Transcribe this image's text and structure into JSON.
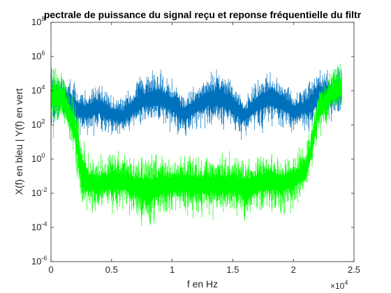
{
  "chart_data": {
    "type": "line",
    "title": "pectrale de puissance du signal reçu et reponse fréquentielle du filtr",
    "xlabel": "f en Hz",
    "ylabel": "X(f) en bleu | Y(f) en vert",
    "x_multiplier_label": "×10",
    "x_multiplier_exp": "4",
    "xlim": [
      0,
      25000
    ],
    "ylim": [
      1e-06,
      100000000
    ],
    "y_scale": "log",
    "grid": false,
    "x_ticks": [
      {
        "value": 0,
        "label": "0"
      },
      {
        "value": 5000,
        "label": "0.5"
      },
      {
        "value": 10000,
        "label": "1"
      },
      {
        "value": 15000,
        "label": "1.5"
      },
      {
        "value": 20000,
        "label": "2"
      },
      {
        "value": 25000,
        "label": "2.5"
      }
    ],
    "y_ticks": [
      {
        "value": 1e-06,
        "base": "10",
        "exp": "-6"
      },
      {
        "value": 0.0001,
        "base": "10",
        "exp": "-4"
      },
      {
        "value": 0.01,
        "base": "10",
        "exp": "-2"
      },
      {
        "value": 1,
        "base": "10",
        "exp": "0"
      },
      {
        "value": 100,
        "base": "10",
        "exp": "2"
      },
      {
        "value": 10000,
        "base": "10",
        "exp": "4"
      },
      {
        "value": 1000000,
        "base": "10",
        "exp": "6"
      },
      {
        "value": 100000000,
        "base": "10",
        "exp": "8"
      }
    ],
    "series": [
      {
        "color": "#0072BD",
        "x": [
          0,
          1000,
          2000,
          2500,
          3000,
          4000,
          5000,
          6000,
          7000,
          8000,
          9000,
          10000,
          11000,
          12000,
          13000,
          14000,
          15000,
          16000,
          17000,
          18000,
          19000,
          20000,
          21000,
          21500,
          22000,
          23000,
          24000
        ],
        "upper": [
          300000,
          100000,
          50000,
          10000,
          20000,
          30000,
          8000,
          6000,
          50000,
          150000,
          300000,
          60000,
          8000,
          30000,
          150000,
          250000,
          50000,
          6000,
          60000,
          200000,
          100000,
          10000,
          20000,
          100000,
          200000,
          300000,
          300000
        ],
        "lower": [
          30,
          100,
          10,
          20,
          10,
          20,
          10,
          10,
          30,
          30,
          20,
          20,
          10,
          30,
          30,
          20,
          20,
          10,
          20,
          30,
          20,
          20,
          30,
          10,
          100,
          100,
          100
        ]
      },
      {
        "color": "#00FF00",
        "x": [
          0,
          1000,
          1800,
          2200,
          2600,
          3000,
          4000,
          5000,
          6000,
          7000,
          8000,
          9000,
          10000,
          11000,
          12000,
          13000,
          14000,
          15000,
          16000,
          17000,
          18000,
          19000,
          20000,
          21000,
          21500,
          22000,
          23000,
          24000
        ],
        "upper": [
          700000,
          100000,
          10000,
          1000,
          30,
          3,
          2,
          5,
          3,
          2,
          3,
          3,
          2,
          3,
          3,
          2,
          3,
          3,
          2,
          3,
          3,
          3,
          3,
          20,
          100,
          10000,
          200000,
          1000000
        ],
        "lower": [
          10,
          50,
          1,
          0.01,
          0.0001,
          0.0003,
          0.0002,
          0.0002,
          0.0003,
          0.0001,
          1e-05,
          0.0001,
          0.0002,
          0.0002,
          0.0001,
          0.0002,
          0.0001,
          0.0002,
          5e-05,
          0.0002,
          0.0003,
          0.0002,
          0.0005,
          0.001,
          0.1,
          10,
          100,
          100
        ]
      }
    ]
  }
}
